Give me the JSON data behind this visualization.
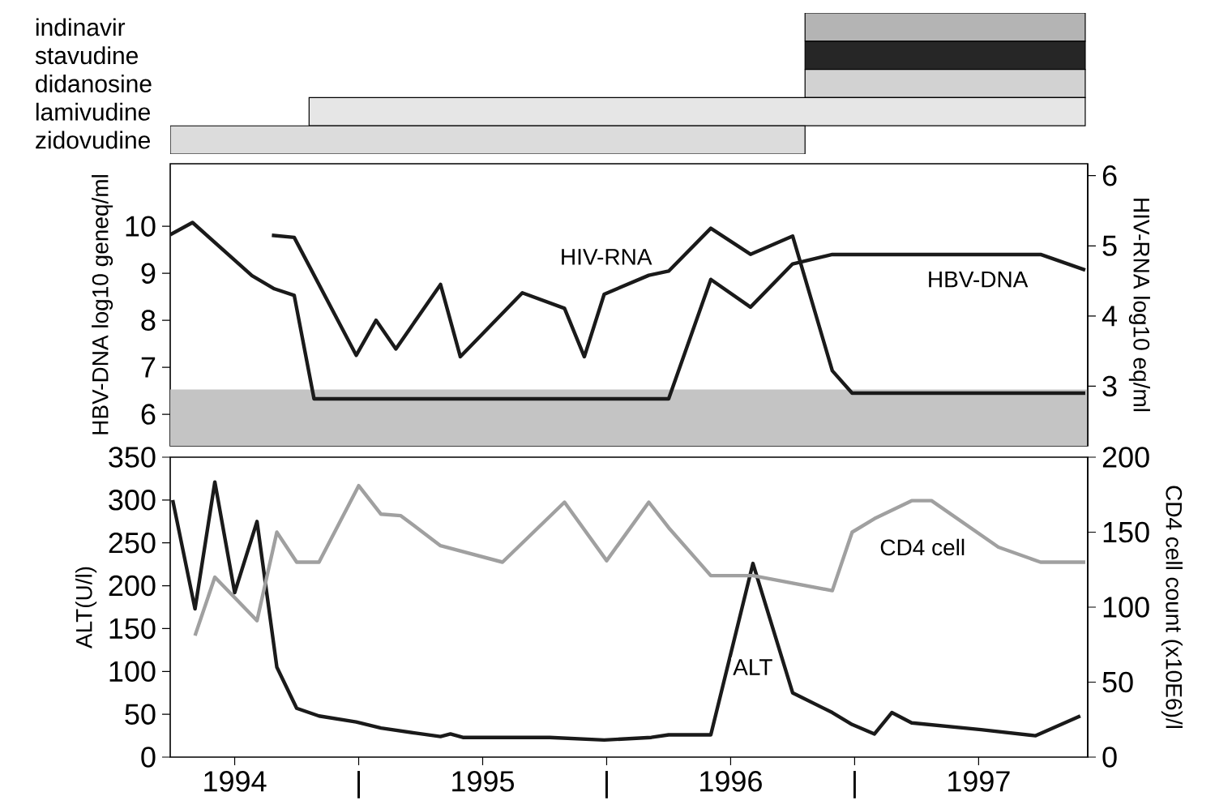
{
  "chart_data": [
    {
      "type": "bar",
      "orientation": "horizontal",
      "categories": [
        "indinavir",
        "stavudine",
        "didanosine",
        "lamivudine",
        "zidovudine"
      ],
      "base": [
        1996.8,
        1996.8,
        1996.8,
        1994.8,
        1994.24
      ],
      "values": [
        1.13,
        1.13,
        1.13,
        3.13,
        2.56
      ],
      "colors": [
        "#b4b4b4",
        "#262626",
        "#d2d2d2",
        "#e6e6e6",
        "#dcdcdc"
      ],
      "xlim": [
        1994.24,
        1997.94
      ],
      "tick_labels": "y"
    },
    {
      "type": "line",
      "ylabel": "HBV-DNA log10 geneq/ml",
      "y2label": "HIV-RNA log10 eq/ml",
      "xlim": [
        1994.24,
        1997.94
      ],
      "ylim": [
        5.33,
        11.33
      ],
      "yticks": [
        6,
        7,
        8,
        9,
        10
      ],
      "y2lim": [
        2.15,
        6.17
      ],
      "y2ticks": [
        3,
        4,
        5,
        6
      ],
      "tick_labels": "y",
      "bands": [
        {
          "axis": "y",
          "from": 5.33,
          "to": 6.53,
          "color": "#c4c4c4"
        }
      ],
      "series": [
        {
          "name": "HBV-DNA",
          "color": "#1a1a1a",
          "x": [
            1994.24,
            1994.33,
            1994.57,
            1994.66,
            1994.74,
            1994.82,
            1996.25,
            1996.42,
            1996.58,
            1996.75,
            1996.91,
            1997.75,
            1997.93
          ],
          "values": [
            9.82,
            10.08,
            8.95,
            8.67,
            8.53,
            6.33,
            6.33,
            8.87,
            8.28,
            9.2,
            9.4,
            9.4,
            9.07
          ]
        },
        {
          "name": "HIV-RNA",
          "axis": "y2",
          "color": "#1a1a1a",
          "x": [
            1994.65,
            1994.74,
            1994.99,
            1995.07,
            1995.15,
            1995.33,
            1995.41,
            1995.66,
            1995.83,
            1995.91,
            1995.99,
            1996.17,
            1996.25,
            1996.42,
            1996.58,
            1996.75,
            1996.91,
            1996.99,
            1997.93
          ],
          "values": [
            5.15,
            5.12,
            3.44,
            3.94,
            3.53,
            4.45,
            3.42,
            4.33,
            4.11,
            3.42,
            4.31,
            4.58,
            4.64,
            5.25,
            4.88,
            5.14,
            3.22,
            2.9,
            2.9
          ]
        }
      ]
    },
    {
      "type": "line",
      "ylabel": "ALT(U/l)",
      "y2label": "CD4 cell count (x10E6)/l",
      "xlim": [
        1994.24,
        1997.94
      ],
      "xticks": [
        {
          "value": 1994.5,
          "label": "1994"
        },
        {
          "value": 1995,
          "label": "|"
        },
        {
          "value": 1995.5,
          "label": "1995"
        },
        {
          "value": 1996,
          "label": "|"
        },
        {
          "value": 1996.5,
          "label": "1996"
        },
        {
          "value": 1997,
          "label": "|"
        },
        {
          "value": 1997.5,
          "label": "1997"
        }
      ],
      "ylim": [
        0,
        350
      ],
      "yticks": [
        0,
        50,
        100,
        150,
        200,
        250,
        300,
        350
      ],
      "y2lim": [
        0,
        200
      ],
      "y2ticks": [
        0,
        50,
        100,
        150,
        200
      ],
      "series": [
        {
          "name": "ALT",
          "color": "#1a1a1a",
          "x": [
            1994.25,
            1994.34,
            1994.42,
            1994.5,
            1994.59,
            1994.67,
            1994.75,
            1994.84,
            1994.99,
            1995.09,
            1995.23,
            1995.33,
            1995.37,
            1995.42,
            1995.77,
            1995.99,
            1996.18,
            1996.25,
            1996.42,
            1996.59,
            1996.75,
            1996.91,
            1996.99,
            1997.08,
            1997.15,
            1997.23,
            1997.51,
            1997.73,
            1997.91
          ],
          "values": [
            300,
            173,
            321,
            192,
            275,
            105,
            57,
            48,
            41,
            34,
            28,
            24,
            27,
            23,
            23,
            20,
            23,
            26,
            26,
            226,
            75,
            52,
            38,
            27,
            52,
            40,
            32,
            25,
            48
          ]
        },
        {
          "name": "CD4 cell",
          "axis": "y2",
          "color": "#a0a0a0",
          "x": [
            1994.34,
            1994.42,
            1994.59,
            1994.67,
            1994.75,
            1994.84,
            1995.0,
            1995.09,
            1995.17,
            1995.33,
            1995.58,
            1995.83,
            1996.0,
            1996.17,
            1996.25,
            1996.42,
            1996.59,
            1996.91,
            1996.99,
            1997.08,
            1997.23,
            1997.31,
            1997.58,
            1997.75,
            1997.93
          ],
          "values": [
            81,
            120,
            91,
            150,
            130,
            130,
            181,
            162,
            161,
            141,
            130,
            170,
            131,
            170,
            153,
            121,
            121,
            111,
            150,
            159,
            171,
            171,
            140,
            130,
            130
          ]
        }
      ]
    }
  ]
}
